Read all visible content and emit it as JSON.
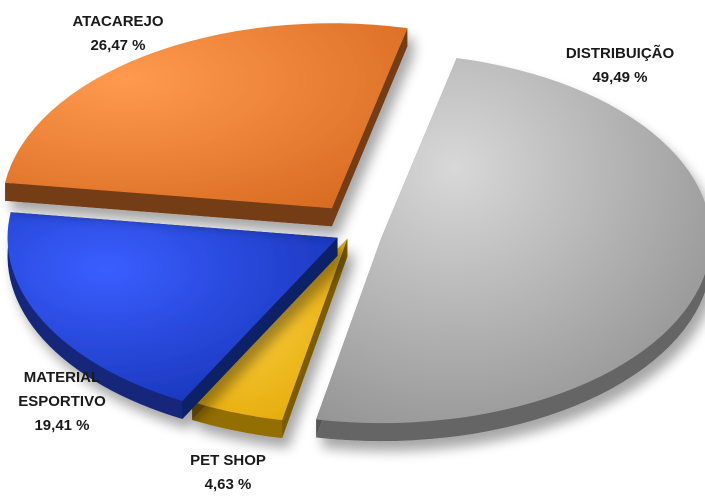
{
  "chart_data": {
    "type": "pie",
    "style": "3d-exploded",
    "slices": [
      {
        "name": "DISTRIBUIÇÃO",
        "value": 49.49,
        "label": "49,49 %",
        "color": "#A9A9A9"
      },
      {
        "name": "PET SHOP",
        "value": 4.63,
        "label": "4,63 %",
        "color": "#F5B800"
      },
      {
        "name": "MATERIAL ESPORTIVO",
        "name_lines": [
          "MATERIAL",
          "ESPORTIVO"
        ],
        "value": 19.41,
        "label": "19,41 %",
        "color": "#1F3FCC"
      },
      {
        "name": "ATACAREJO",
        "value": 26.47,
        "label": "26,47 %",
        "color": "#E8782E"
      }
    ],
    "legend": "none"
  }
}
